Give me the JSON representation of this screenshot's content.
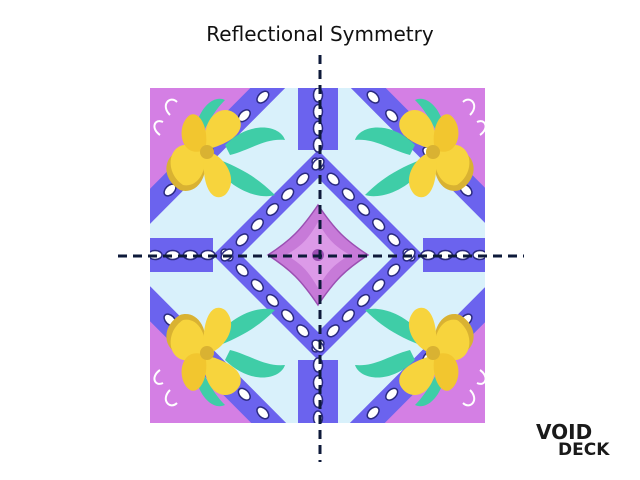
{
  "title": "Reflectional Symmetry",
  "logo": {
    "line1": "VOID",
    "line2": "DECK"
  },
  "colors": {
    "corner_purple": "#d47fe4",
    "band_blue": "#6b63ee",
    "panel_light": "#d9f1fb",
    "flower_yellow": "#f7d43d",
    "flower_shadow": "#d9b232",
    "leaf_teal": "#3fcda7",
    "center_flower": "#c77ad8",
    "axis_line": "#0e1a3a"
  },
  "axes": [
    "vertical",
    "horizontal"
  ]
}
